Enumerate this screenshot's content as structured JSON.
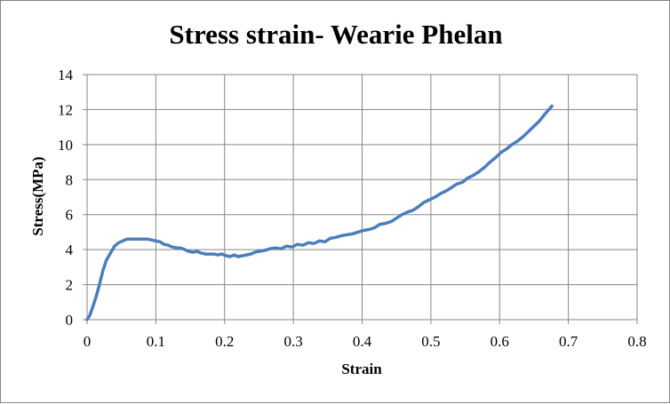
{
  "chart_data": {
    "type": "line",
    "title": "Stress strain- Wearie Phelan",
    "xlabel": "Strain",
    "ylabel": "Stress(MPa)",
    "xlim": [
      0,
      0.8
    ],
    "ylim": [
      0,
      14
    ],
    "xticks": [
      "0",
      "0.1",
      "0.2",
      "0.3",
      "0.4",
      "0.5",
      "0.6",
      "0.7",
      "0.8"
    ],
    "yticks": [
      "0",
      "2",
      "4",
      "6",
      "8",
      "10",
      "12",
      "14"
    ],
    "grid": true,
    "legend": "none",
    "colors": {
      "series": "#4a7ebb",
      "grid": "#878787",
      "axis": "#878787",
      "border": "#868686"
    },
    "series": [
      {
        "x": [
          0,
          0.004,
          0.008,
          0.013,
          0.018,
          0.023,
          0.028,
          0.034,
          0.04,
          0.046,
          0.052,
          0.058,
          0.064,
          0.07,
          0.076,
          0.082,
          0.088,
          0.094,
          0.1,
          0.106,
          0.112,
          0.118,
          0.124,
          0.13,
          0.136,
          0.142,
          0.148,
          0.154,
          0.16,
          0.166,
          0.172,
          0.178,
          0.184,
          0.19,
          0.196,
          0.202,
          0.208,
          0.214,
          0.22,
          0.226,
          0.232,
          0.238,
          0.244,
          0.25,
          0.258,
          0.266,
          0.274,
          0.282,
          0.29,
          0.298,
          0.306,
          0.314,
          0.322,
          0.33,
          0.338,
          0.346,
          0.354,
          0.362,
          0.37,
          0.378,
          0.386,
          0.394,
          0.402,
          0.41,
          0.418,
          0.426,
          0.434,
          0.442,
          0.45,
          0.458,
          0.466,
          0.474,
          0.482,
          0.49,
          0.498,
          0.506,
          0.514,
          0.522,
          0.53,
          0.538,
          0.546,
          0.554,
          0.562,
          0.57,
          0.578,
          0.586,
          0.594,
          0.602,
          0.61,
          0.618,
          0.626,
          0.634,
          0.642,
          0.65,
          0.658,
          0.666,
          0.676
        ],
        "y": [
          0,
          0.25,
          0.7,
          1.3,
          2.0,
          2.8,
          3.4,
          3.8,
          4.2,
          4.4,
          4.5,
          4.6,
          4.6,
          4.6,
          4.6,
          4.6,
          4.6,
          4.55,
          4.5,
          4.45,
          4.3,
          4.25,
          4.15,
          4.1,
          4.1,
          4.0,
          3.9,
          3.85,
          3.9,
          3.8,
          3.75,
          3.75,
          3.75,
          3.7,
          3.75,
          3.65,
          3.6,
          3.7,
          3.6,
          3.65,
          3.7,
          3.75,
          3.85,
          3.9,
          3.95,
          4.05,
          4.1,
          4.05,
          4.2,
          4.15,
          4.3,
          4.25,
          4.4,
          4.35,
          4.5,
          4.45,
          4.65,
          4.7,
          4.8,
          4.85,
          4.9,
          5.0,
          5.1,
          5.15,
          5.25,
          5.45,
          5.5,
          5.6,
          5.8,
          6.0,
          6.15,
          6.25,
          6.45,
          6.7,
          6.85,
          7.0,
          7.2,
          7.35,
          7.55,
          7.75,
          7.85,
          8.1,
          8.25,
          8.45,
          8.7,
          9.0,
          9.25,
          9.55,
          9.75,
          10.0,
          10.2,
          10.45,
          10.75,
          11.05,
          11.35,
          11.75,
          12.2
        ]
      }
    ]
  }
}
